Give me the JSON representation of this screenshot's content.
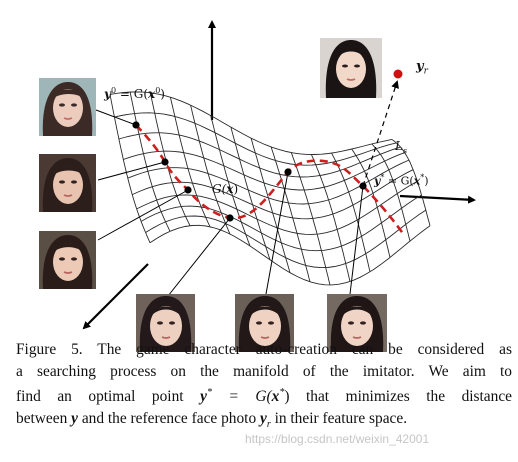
{
  "figure": {
    "labels": {
      "y0_lhs": "y",
      "y0_sup": "0",
      "y0_rhs_fn": "= G(",
      "y0_rhs_var": "x",
      "y0_rhs_sup": "0",
      "y0_close": ")",
      "gx_fn": "G(",
      "gx_var": "x",
      "gx_close": ")",
      "yr_var": "y",
      "yr_sub": "r",
      "ls_var": "L",
      "ls_sub": "s",
      "ystar_var": "y",
      "ystar_sup": "*",
      "ystar_rhs_fn": "= G(",
      "ystar_rhs_var": "x",
      "ystar_rhs_sup": "*",
      "ystar_close": ")"
    },
    "colors": {
      "curve": "#cc1f1f",
      "grid": "#222222",
      "point": "#000000",
      "target": "#cc1111"
    }
  },
  "caption": {
    "line1": "Figure 5. The game character auto-creation can be considered as",
    "line2": "a searching process on the manifold of the imitator.  We aim to",
    "line3_a": "find an optimal point ",
    "line3_eq1": "y",
    "line3_eq1_sup": "*",
    "line3_eq2": " = G(",
    "line3_eq3": "x",
    "line3_eq3_sup": "*",
    "line3_eq4": ")",
    "line3_b": " that minimizes the distance",
    "line4_a": "between ",
    "line4_y": "y",
    "line4_b": " and the reference face photo ",
    "line4_yr": "y",
    "line4_yr_sub": "r",
    "line4_c": " in their feature space."
  },
  "watermark": "https://blog.csdn.net/weixin_42001"
}
